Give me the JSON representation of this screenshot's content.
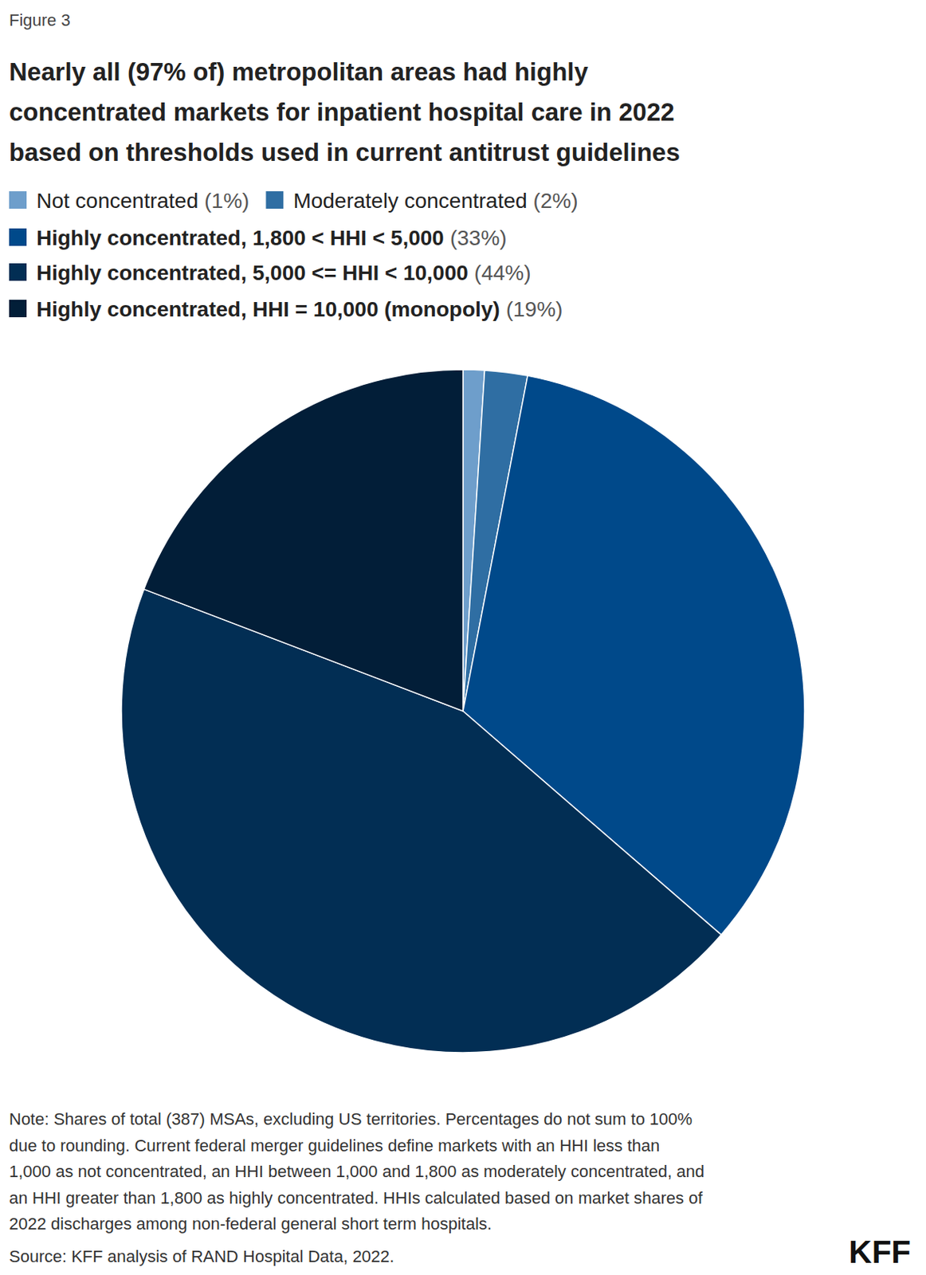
{
  "chart_data": {
    "type": "pie",
    "figure_label": "Figure 3",
    "title": [
      "Nearly all (97% of) metropolitan areas had highly",
      "concentrated markets for inpatient hospital care in 2022",
      "based on thresholds used in current antitrust guidelines"
    ],
    "categories": [
      "Not concentrated",
      "Moderately concentrated",
      "Highly concentrated, 1,800 < HHI < 5,000",
      "Highly concentrated, 5,000 <= HHI < 10,000",
      "Highly concentrated, HHI = 10,000 (monopoly)"
    ],
    "values": [
      1,
      2,
      33,
      44,
      19
    ],
    "value_labels": [
      "(1%)",
      "(2%)",
      "(33%)",
      "(44%)",
      "(19%)"
    ],
    "colors": [
      "#6e9ecb",
      "#2f6ea3",
      "#00498a",
      "#022e54",
      "#021e38"
    ],
    "legend": "top-left",
    "note": [
      "Note: Shares of total (387) MSAs, excluding US territories. Percentages do not sum to 100%",
      "due to rounding. Current federal merger guidelines define markets with an HHI less than",
      "1,000 as not concentrated, an HHI between 1,000 and 1,800 as moderately concentrated, and",
      "an HHI greater than 1,800 as highly concentrated. HHIs calculated based on market shares of",
      "2022 discharges among non-federal general short term hospitals."
    ],
    "source": "Source: KFF analysis of RAND Hospital Data, 2022.",
    "logo": "KFF"
  }
}
